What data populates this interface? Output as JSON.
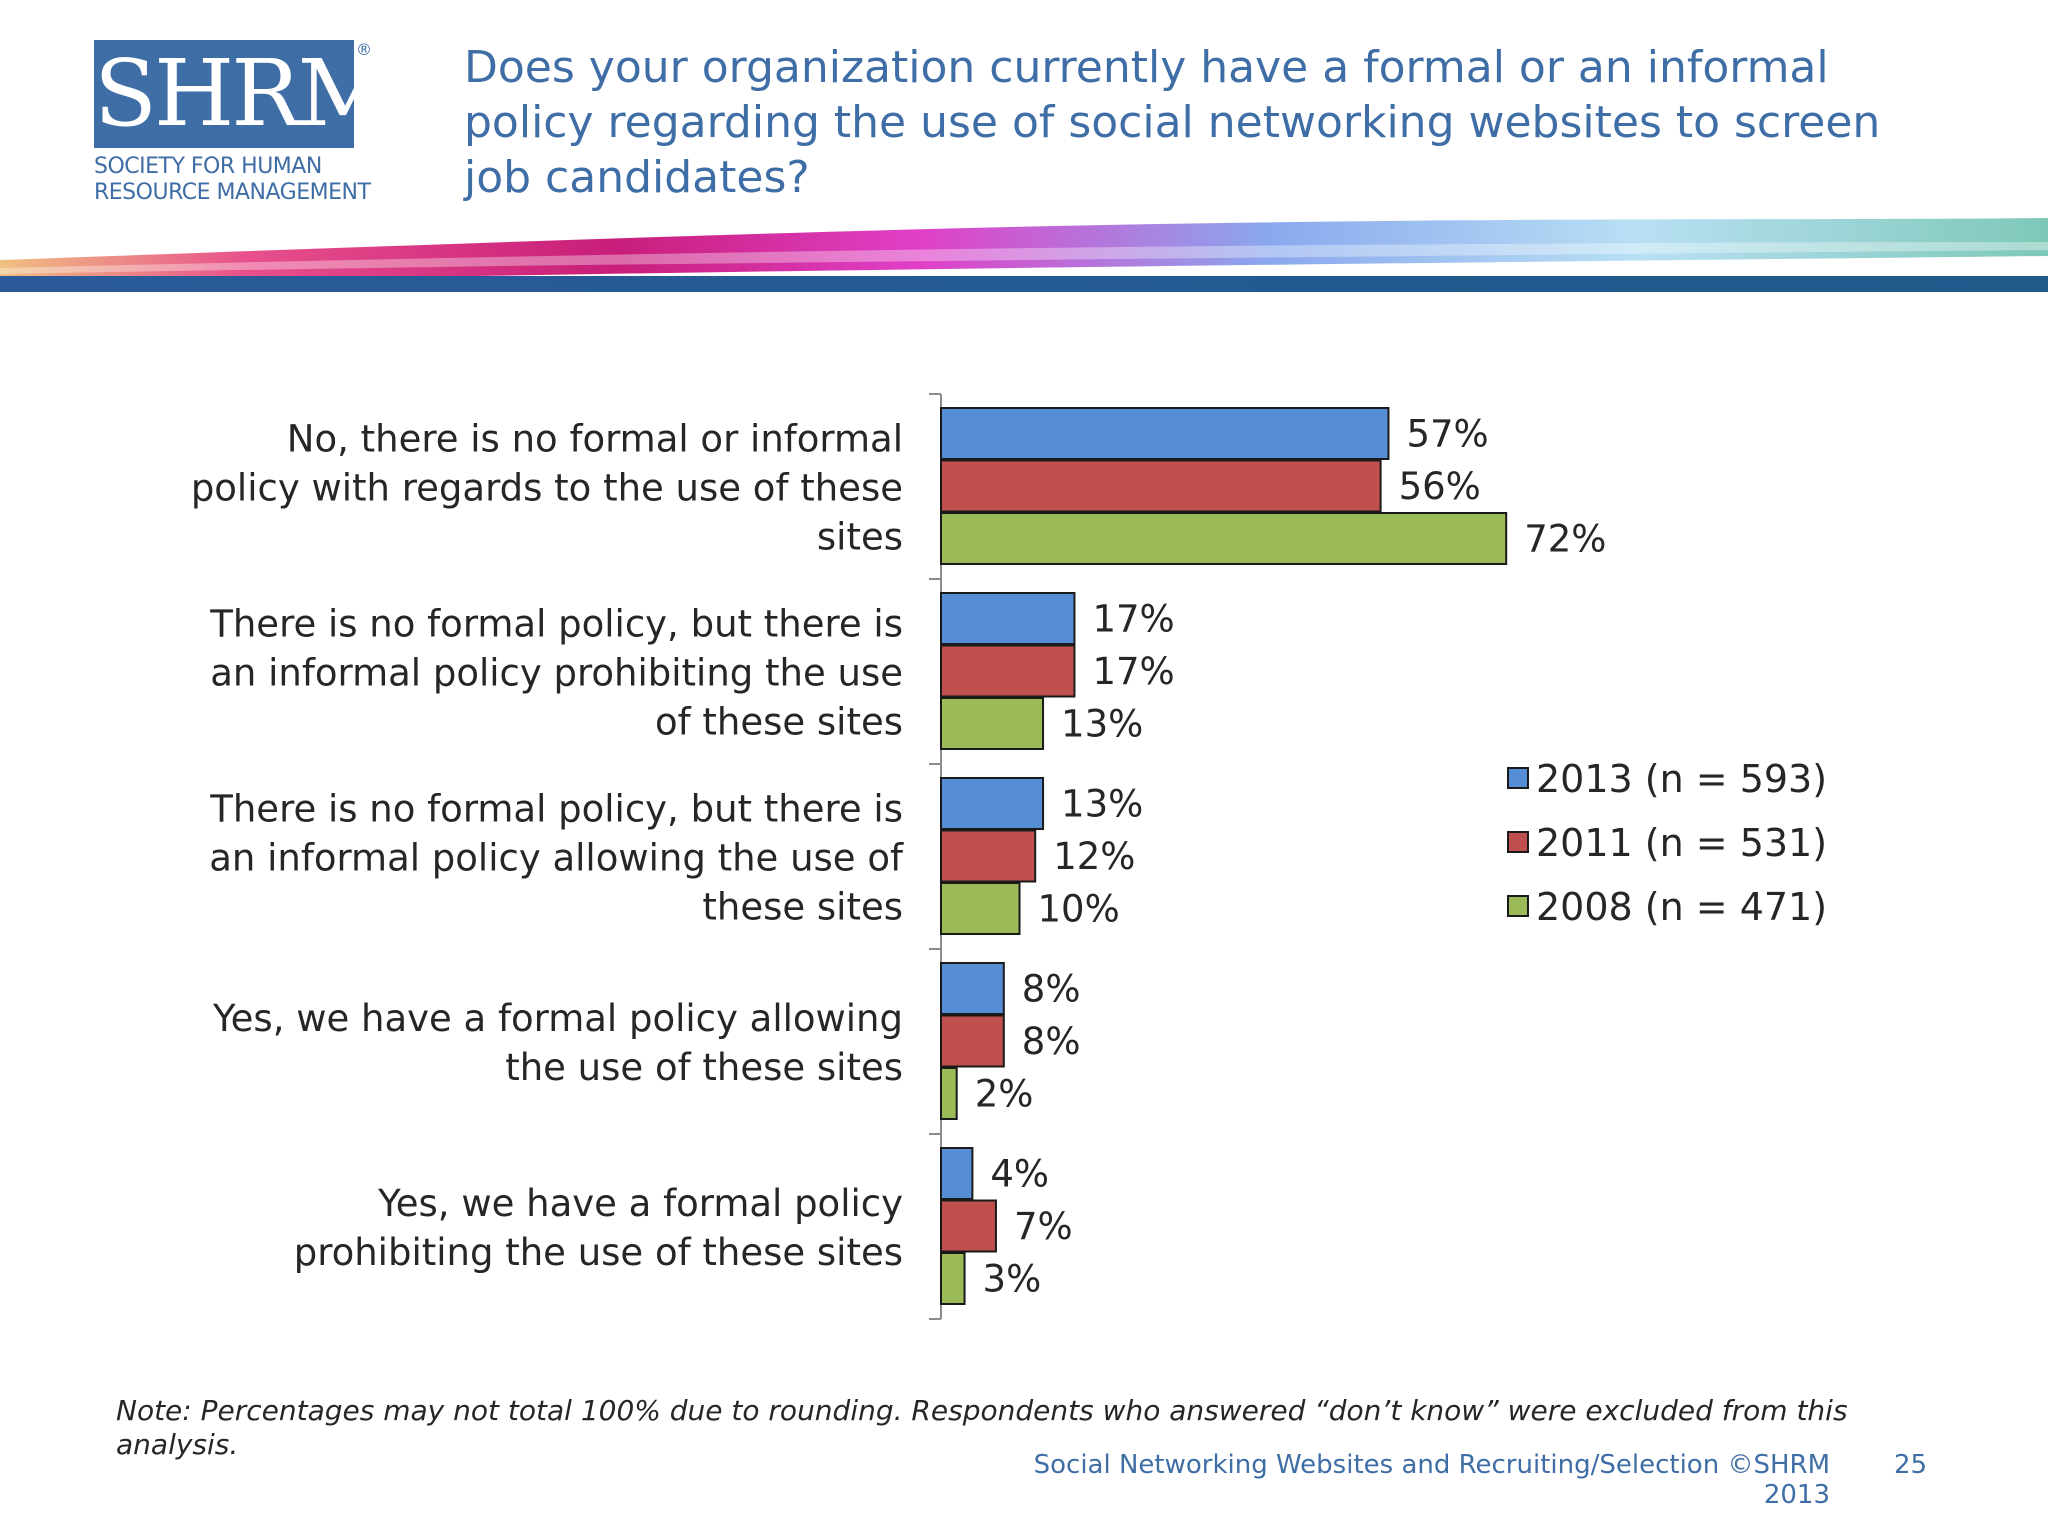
{
  "logo": {
    "mark": "SHRM",
    "registered": "®",
    "line1": "SOCIETY FOR HUMAN",
    "line2": "RESOURCE MANAGEMENT"
  },
  "title": "Does your organization currently have a formal or an informal policy regarding the use of social networking websites to screen job candidates?",
  "colors": {
    "accent": "#3f6ea6",
    "series_2013": "#558ed5",
    "series_2011": "#c0504d",
    "series_2008": "#9bbb59"
  },
  "chart_data": {
    "type": "bar",
    "orientation": "horizontal",
    "categories": [
      [
        "No, there is no formal or informal",
        "policy with regards to the use of these",
        "sites"
      ],
      [
        "There is no formal policy, but there is",
        "an informal policy prohibiting the use",
        "of these sites"
      ],
      [
        "There is no formal policy, but there is",
        "an informal policy allowing the use of",
        "these sites"
      ],
      [
        "Yes, we have a formal policy allowing",
        "the use of these sites"
      ],
      [
        "Yes, we have a formal policy",
        "prohibiting the use of these sites"
      ]
    ],
    "series": [
      {
        "name": "2013 (n = 593)",
        "color": "#558ed5",
        "values": [
          57,
          17,
          13,
          8,
          4
        ],
        "labels": [
          "57%",
          "17%",
          "13%",
          "8%",
          "4%"
        ]
      },
      {
        "name": "2011 (n = 531)",
        "color": "#c0504d",
        "values": [
          56,
          17,
          12,
          8,
          7
        ],
        "labels": [
          "56%",
          "17%",
          "12%",
          "8%",
          "7%"
        ]
      },
      {
        "name": "2008 (n = 471)",
        "color": "#9bbb59",
        "values": [
          72,
          13,
          10,
          2,
          3
        ],
        "labels": [
          "72%",
          "13%",
          "10%",
          "2%",
          "3%"
        ]
      }
    ],
    "xlim": [
      0,
      100
    ],
    "grid": false,
    "legend": "right"
  },
  "note": "Note: Percentages may not total 100% due to rounding. Respondents who answered “don’t know” were excluded from this analysis.",
  "footer": {
    "text": "Social Networking Websites and Recruiting/Selection ©SHRM 2013",
    "page": "25"
  }
}
